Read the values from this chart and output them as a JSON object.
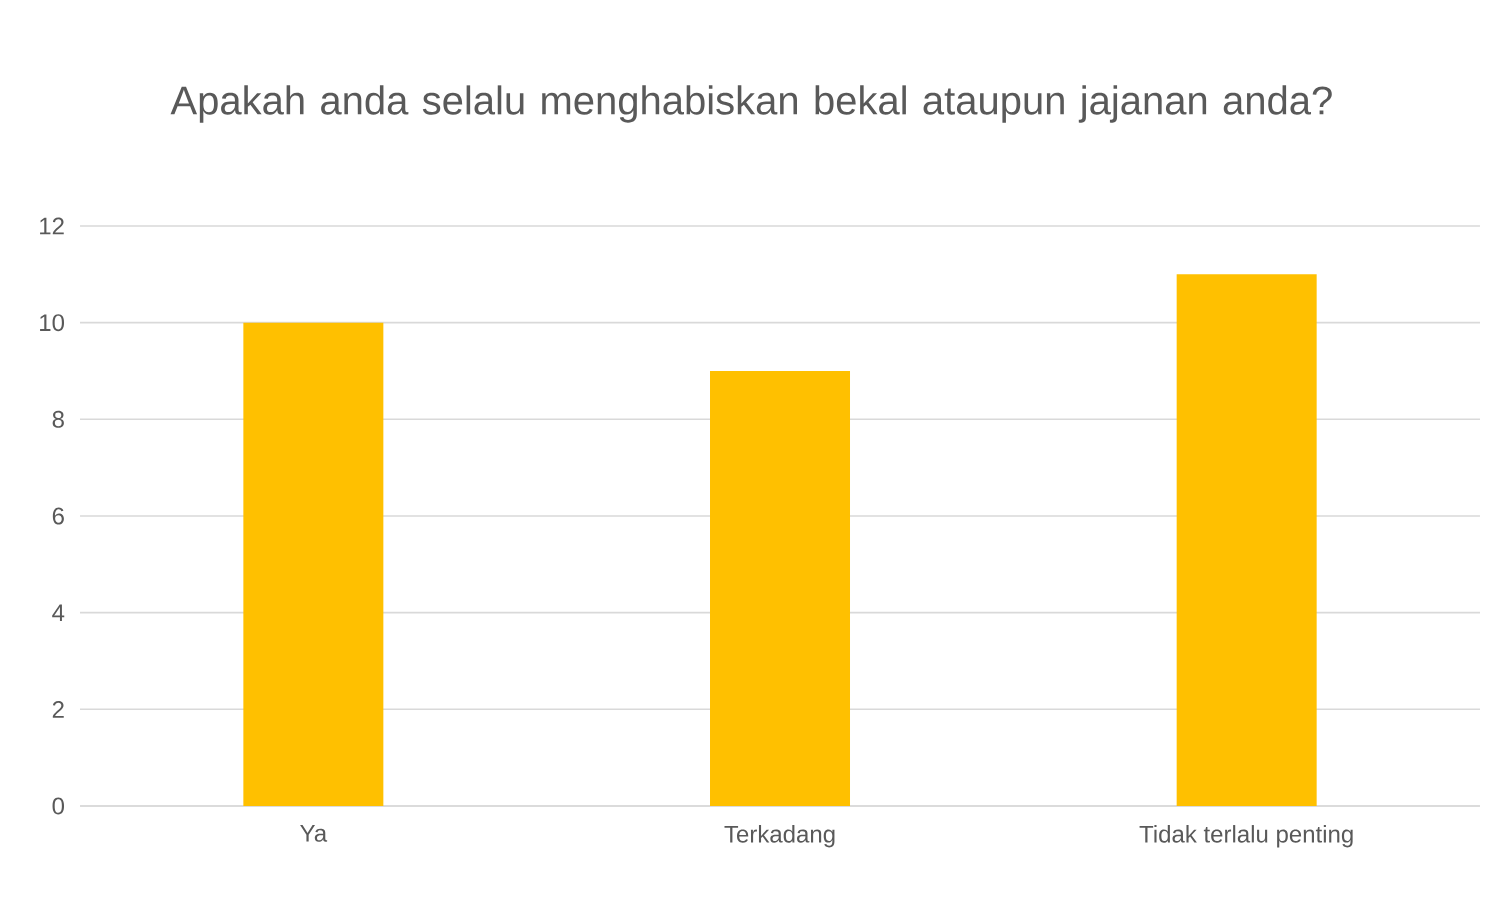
{
  "chart_data": {
    "type": "bar",
    "title": "Apakah anda selalu menghabiskan bekal ataupun jajanan anda?",
    "categories": [
      "Ya",
      "Terkadang",
      "Tidak terlalu penting"
    ],
    "values": [
      10,
      9,
      11
    ],
    "color": "#ffc000",
    "ylim": [
      0,
      12
    ],
    "yticks": [
      0,
      2,
      4,
      6,
      8,
      10,
      12
    ],
    "grid": "y"
  }
}
